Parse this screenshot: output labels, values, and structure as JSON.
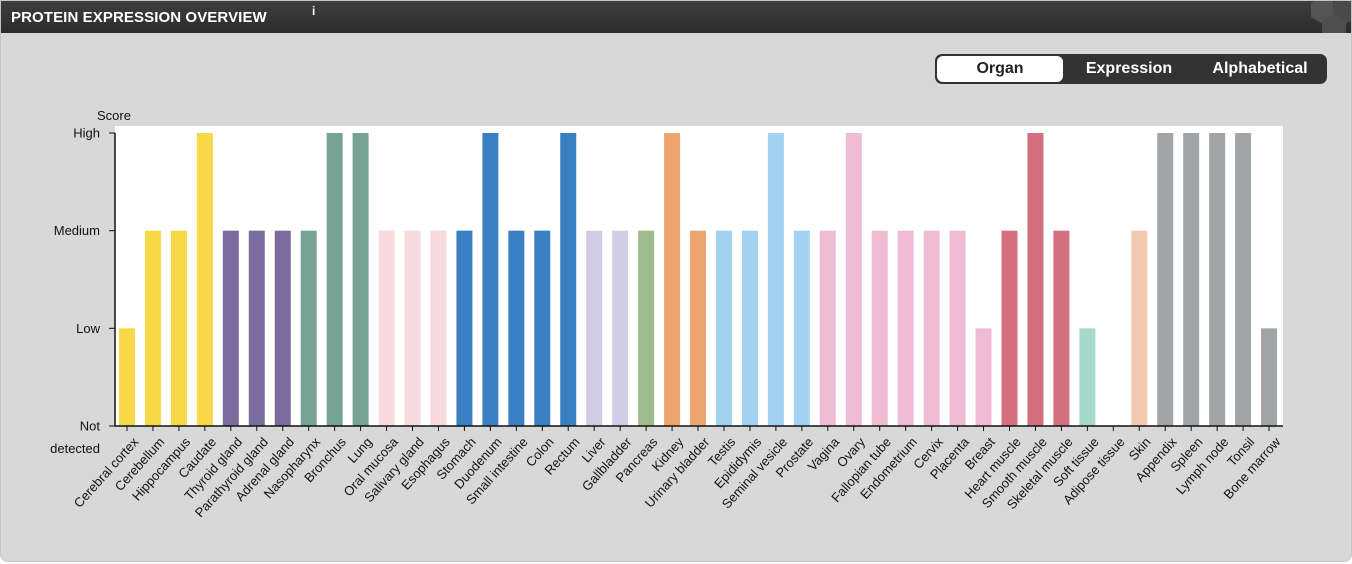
{
  "header": {
    "title": "PROTEIN EXPRESSION OVERVIEW",
    "info_mark": "i"
  },
  "sort_toggle": {
    "options": [
      "Organ",
      "Expression",
      "Alphabetical"
    ],
    "selected": "Organ"
  },
  "chart_data": {
    "type": "bar",
    "ylabel": "Score",
    "y_levels": [
      "Not detected",
      "Low",
      "Medium",
      "High"
    ],
    "y_tick_labels": [
      {
        "line1": "Not",
        "line2": "detected"
      },
      {
        "line1": "Low"
      },
      {
        "line1": "Medium"
      },
      {
        "line1": "High"
      }
    ],
    "ylim": [
      0,
      3
    ],
    "grid": false,
    "categories": [
      "Cerebral cortex",
      "Cerebellum",
      "Hippocampus",
      "Caudate",
      "Thyroid gland",
      "Parathyroid gland",
      "Adrenal gland",
      "Nasopharynx",
      "Bronchus",
      "Lung",
      "Oral mucosa",
      "Salivary gland",
      "Esophagus",
      "Stomach",
      "Duodenum",
      "Small intestine",
      "Colon",
      "Rectum",
      "Liver",
      "Gallbladder",
      "Pancreas",
      "Kidney",
      "Urinary bladder",
      "Testis",
      "Epididymis",
      "Seminal vesicle",
      "Prostate",
      "Vagina",
      "Ovary",
      "Fallopian tube",
      "Endometrium",
      "Cervix",
      "Placenta",
      "Breast",
      "Heart muscle",
      "Smooth muscle",
      "Skeletal muscle",
      "Soft tissue",
      "Adipose tissue",
      "Skin",
      "Appendix",
      "Spleen",
      "Lymph node",
      "Tonsil",
      "Bone marrow"
    ],
    "values": [
      1,
      2,
      2,
      3,
      2,
      2,
      2,
      2,
      3,
      3,
      2,
      2,
      2,
      2,
      3,
      2,
      2,
      3,
      2,
      2,
      2,
      3,
      2,
      2,
      2,
      3,
      2,
      2,
      3,
      2,
      2,
      2,
      2,
      1,
      2,
      3,
      2,
      1,
      0,
      2,
      3,
      3,
      3,
      3,
      1
    ],
    "colors": [
      "#f7d947",
      "#f7d947",
      "#f7d947",
      "#f7d947",
      "#7b6b9c",
      "#7b6b9c",
      "#7b6b9c",
      "#76a393",
      "#76a393",
      "#76a393",
      "#f6dadd",
      "#f6dadd",
      "#f6dadd",
      "#3b7fc3",
      "#3b7fc3",
      "#3b7fc3",
      "#3b7fc3",
      "#3b7fc3",
      "#d2cde6",
      "#d2cde6",
      "#9dbd8c",
      "#eda46e",
      "#eda46e",
      "#a4d2f1",
      "#a4d2f1",
      "#a4d2f1",
      "#a4d2f1",
      "#f0bcd5",
      "#f0bcd5",
      "#f0bcd5",
      "#f0bcd5",
      "#f0bcd5",
      "#f0bcd5",
      "#f0bcd5",
      "#d46f7d",
      "#d46f7d",
      "#d46f7d",
      "#a7d9cb",
      "#a7d9cb",
      "#f3c9b2",
      "#a2a5a7",
      "#a2a5a7",
      "#a2a5a7",
      "#a2a5a7",
      "#a2a5a7"
    ]
  }
}
